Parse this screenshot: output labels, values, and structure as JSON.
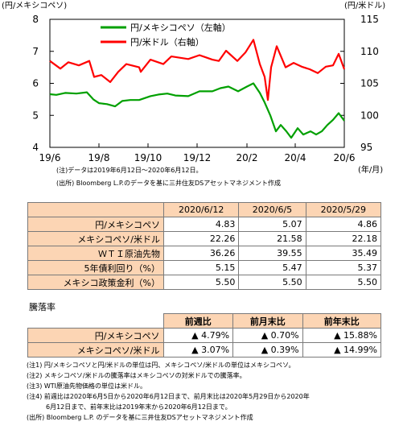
{
  "chart_data": {
    "type": "line",
    "left_axis_unit": "(円/メキシコペソ)",
    "right_axis_unit": "(円/米ドル)",
    "x_unit": "(年/月)",
    "x_ticks": [
      "19/6",
      "19/8",
      "19/10",
      "19/12",
      "20/2",
      "20/4",
      "20/6"
    ],
    "left_ticks": [
      "8",
      "7",
      "6",
      "5",
      "4"
    ],
    "right_ticks": [
      "115",
      "110",
      "105",
      "100",
      "95"
    ],
    "left_ylim": [
      4,
      8
    ],
    "right_ylim": [
      95,
      115
    ],
    "x_range": [
      "2019-06-12",
      "2020-06-12"
    ],
    "grid": false,
    "legend_position": "top-center",
    "series": [
      {
        "name": "円/メキシコペソ（左軸）",
        "axis": "left",
        "color": "#00a000",
        "points": [
          [
            "2019-06-12",
            5.66
          ],
          [
            "2019-06-20",
            5.64
          ],
          [
            "2019-07-01",
            5.7
          ],
          [
            "2019-07-15",
            5.68
          ],
          [
            "2019-07-28",
            5.72
          ],
          [
            "2019-08-05",
            5.5
          ],
          [
            "2019-08-12",
            5.38
          ],
          [
            "2019-08-22",
            5.35
          ],
          [
            "2019-09-01",
            5.28
          ],
          [
            "2019-09-10",
            5.45
          ],
          [
            "2019-09-20",
            5.48
          ],
          [
            "2019-10-01",
            5.48
          ],
          [
            "2019-10-15",
            5.6
          ],
          [
            "2019-10-25",
            5.65
          ],
          [
            "2019-11-05",
            5.68
          ],
          [
            "2019-11-15",
            5.62
          ],
          [
            "2019-12-01",
            5.6
          ],
          [
            "2019-12-15",
            5.75
          ],
          [
            "2019-12-31",
            5.75
          ],
          [
            "2020-01-10",
            5.85
          ],
          [
            "2020-01-20",
            5.9
          ],
          [
            "2020-02-01",
            5.75
          ],
          [
            "2020-02-12",
            5.9
          ],
          [
            "2020-02-20",
            6.0
          ],
          [
            "2020-02-28",
            5.7
          ],
          [
            "2020-03-05",
            5.4
          ],
          [
            "2020-03-12",
            5.0
          ],
          [
            "2020-03-19",
            4.5
          ],
          [
            "2020-03-25",
            4.7
          ],
          [
            "2020-04-01",
            4.5
          ],
          [
            "2020-04-07",
            4.3
          ],
          [
            "2020-04-15",
            4.6
          ],
          [
            "2020-04-22",
            4.4
          ],
          [
            "2020-05-01",
            4.5
          ],
          [
            "2020-05-08",
            4.4
          ],
          [
            "2020-05-15",
            4.5
          ],
          [
            "2020-05-22",
            4.7
          ],
          [
            "2020-05-29",
            4.86
          ],
          [
            "2020-06-05",
            5.07
          ],
          [
            "2020-06-12",
            4.83
          ]
        ]
      },
      {
        "name": "円/米ドル（右軸）",
        "axis": "right",
        "color": "#ff0000",
        "points": [
          [
            "2019-06-12",
            108.5
          ],
          [
            "2019-06-25",
            107.3
          ],
          [
            "2019-07-05",
            108.3
          ],
          [
            "2019-07-18",
            107.8
          ],
          [
            "2019-07-31",
            108.5
          ],
          [
            "2019-08-06",
            106.0
          ],
          [
            "2019-08-15",
            106.3
          ],
          [
            "2019-08-26",
            105.2
          ],
          [
            "2019-09-05",
            106.8
          ],
          [
            "2019-09-15",
            108.0
          ],
          [
            "2019-10-01",
            107.5
          ],
          [
            "2019-10-03",
            106.8
          ],
          [
            "2019-10-15",
            108.7
          ],
          [
            "2019-10-31",
            108.0
          ],
          [
            "2019-11-10",
            109.2
          ],
          [
            "2019-12-01",
            108.8
          ],
          [
            "2019-12-15",
            109.4
          ],
          [
            "2019-12-31",
            108.7
          ],
          [
            "2020-01-08",
            108.5
          ],
          [
            "2020-01-17",
            110.1
          ],
          [
            "2020-01-31",
            108.5
          ],
          [
            "2020-02-10",
            109.8
          ],
          [
            "2020-02-20",
            111.8
          ],
          [
            "2020-02-28",
            108.0
          ],
          [
            "2020-03-05",
            106.0
          ],
          [
            "2020-03-09",
            102.4
          ],
          [
            "2020-03-13",
            107.5
          ],
          [
            "2020-03-20",
            110.8
          ],
          [
            "2020-03-31",
            107.5
          ],
          [
            "2020-04-10",
            108.2
          ],
          [
            "2020-04-20",
            107.6
          ],
          [
            "2020-04-30",
            107.2
          ],
          [
            "2020-05-10",
            106.6
          ],
          [
            "2020-05-20",
            107.6
          ],
          [
            "2020-05-29",
            107.8
          ],
          [
            "2020-06-05",
            109.6
          ],
          [
            "2020-06-12",
            107.2
          ]
        ]
      }
    ]
  },
  "chart_notes": [
    "(注)データは2019年6月12日～2020年6月12日。",
    "(出所) Bloomberg L.P.のデータを基に三井住友DSアセットマネジメント作成"
  ],
  "table1": {
    "columns": [
      "2020/6/12",
      "2020/6/5",
      "2020/5/29"
    ],
    "rows": [
      {
        "label": "円/メキシコペソ",
        "values": [
          "4.83",
          "5.07",
          "4.86"
        ]
      },
      {
        "label": "メキシコペソ/米ドル",
        "values": [
          "22.26",
          "21.58",
          "22.18"
        ]
      },
      {
        "label": "ＷＴＩ原油先物",
        "values": [
          "36.26",
          "39.55",
          "35.49"
        ]
      },
      {
        "label": "5年債利回り（%）",
        "values": [
          "5.15",
          "5.47",
          "5.37"
        ]
      },
      {
        "label": "メキシコ政策金利（%）",
        "values": [
          "5.50",
          "5.50",
          "5.50"
        ]
      }
    ]
  },
  "table2": {
    "title": "騰落率",
    "columns": [
      "前週比",
      "前月末比",
      "前年末比"
    ],
    "rows": [
      {
        "label": "円/メキシコペソ",
        "values": [
          "▲ 4.79%",
          "▲ 0.70%",
          "▲ 15.88%"
        ]
      },
      {
        "label": "メキシコペソ/米ドル",
        "values": [
          "▲ 3.07%",
          "▲ 0.39%",
          "▲ 14.99%"
        ]
      }
    ]
  },
  "footnotes": [
    "(注1) 円/メキシコペソと円/米ドルの単位は円、メキシコペソ/米ドルの単位はメキシコペソ。",
    "(注2) メキシコペソ/米ドルの騰落率はメキシコペソの対米ドルでの騰落率。",
    "(注3) WTI原油先物価格の単位は米ドル。",
    "(注4) 前週比は2020年6月5日から2020年6月12日まで、前月末比は2020年5月29日から2020年",
    "　　　6月12日まで、前年末比は2019年末から2020年6月12日まで。",
    "(出所) Bloomberg L.P. のデータを基に三井住友DSアセットマネジメント作成"
  ]
}
